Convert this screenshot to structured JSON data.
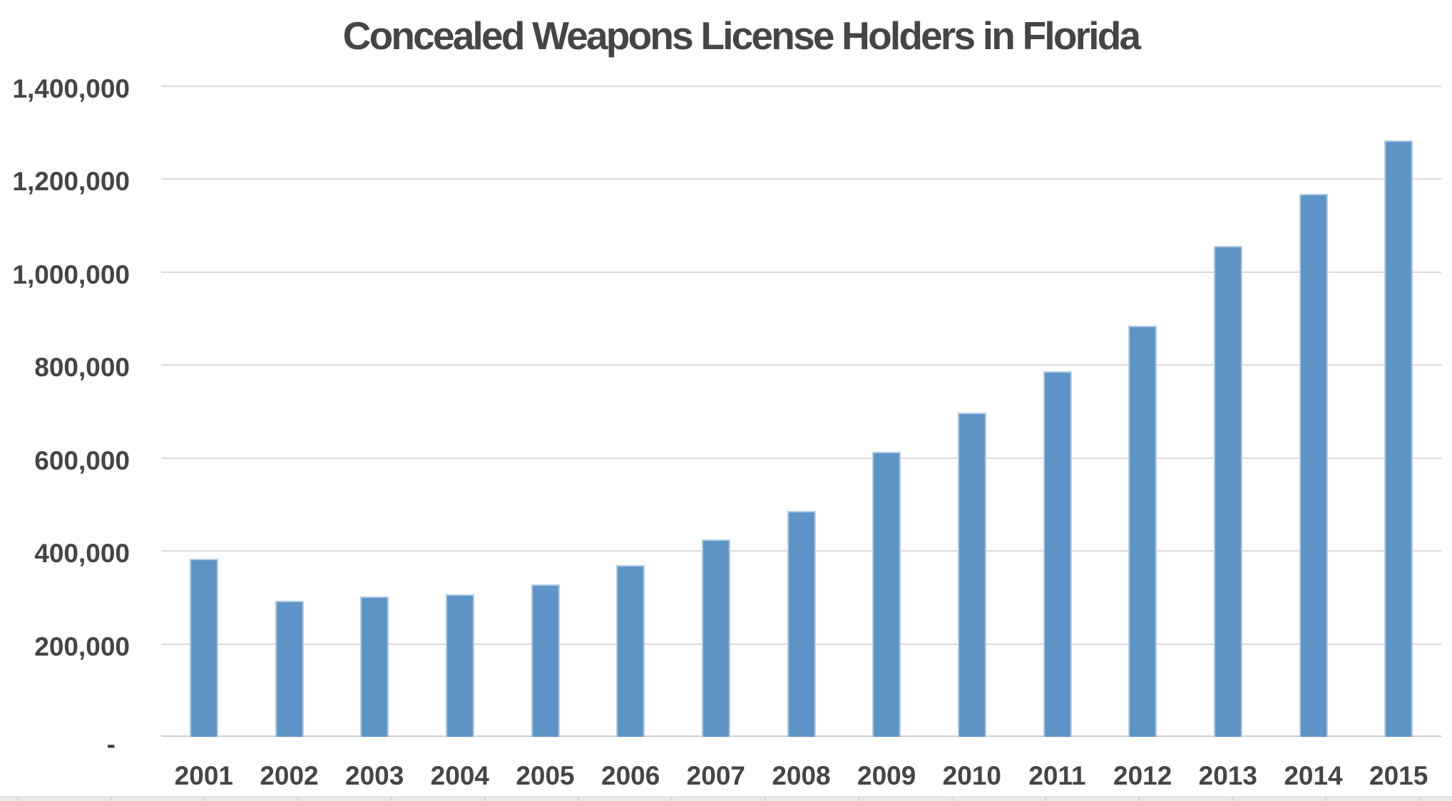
{
  "chart_data": {
    "type": "bar",
    "title": "Concealed Weapons License Holders in Florida",
    "categories": [
      "2001",
      "2002",
      "2003",
      "2004",
      "2005",
      "2006",
      "2007",
      "2008",
      "2009",
      "2010",
      "2011",
      "2012",
      "2013",
      "2014",
      "2015"
    ],
    "values": [
      383000,
      293000,
      302000,
      307000,
      328000,
      369000,
      425000,
      486000,
      614000,
      698000,
      786000,
      885000,
      1056000,
      1169000,
      1283000
    ],
    "xlabel": "",
    "ylabel": "",
    "ylim": [
      0,
      1400000
    ],
    "grid": true,
    "legend": false,
    "y_axis": {
      "tick_values": [
        1400000,
        1200000,
        1000000,
        800000,
        600000,
        400000,
        200000,
        0
      ],
      "tick_labels": [
        "1,400,000",
        "1,200,000",
        "1,000,000",
        "800,000",
        "600,000",
        "400,000",
        "200,000",
        "-"
      ]
    }
  },
  "colors": {
    "bar_fill": "#5e94c8",
    "bar_border": "#b4cce5",
    "gridline": "#d9d9d9",
    "axis_line": "#d0d0d0",
    "text": "#454545",
    "background": "#ffffff",
    "bottom_strip": "#e9e9e9",
    "bottom_strip_tick": "#d8d8d8"
  }
}
